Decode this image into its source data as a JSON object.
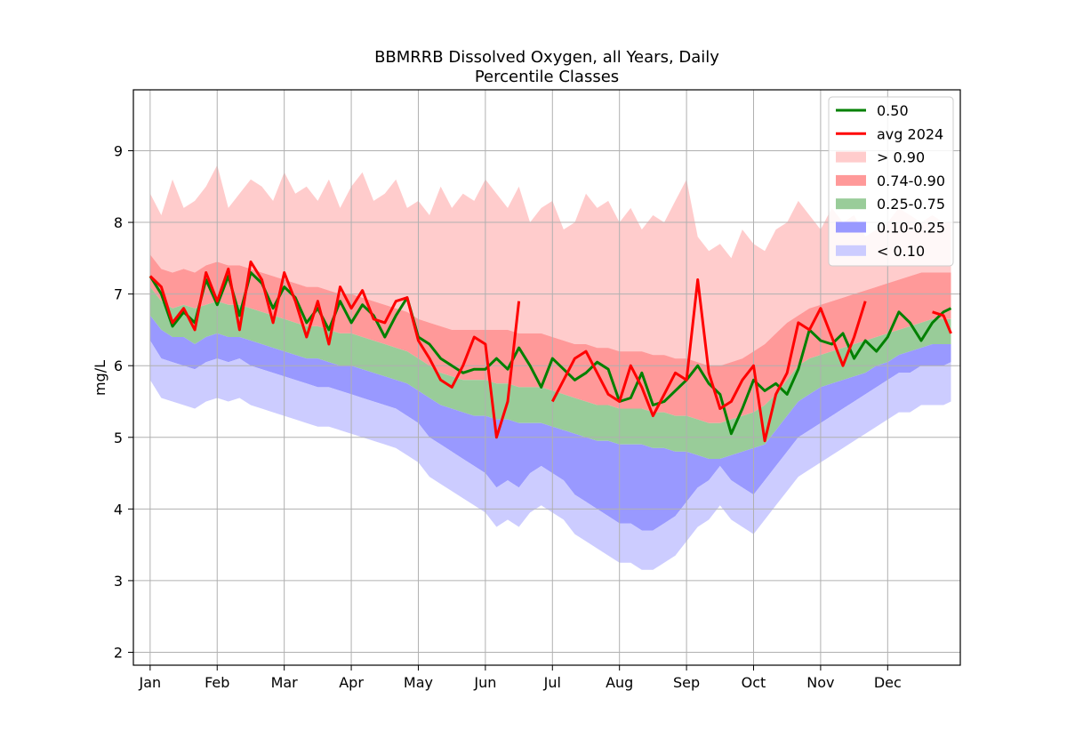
{
  "chart_data": {
    "type": "area",
    "title_line1": "BBMRRB Dissolved Oxygen, all Years, Daily",
    "title_line2": "Percentile Classes",
    "xlabel": "",
    "ylabel": "mg/L",
    "xlim_days": [
      -9,
      435
    ],
    "ylim": [
      1.82,
      9.85
    ],
    "months": [
      {
        "label": "Jan",
        "day": 0
      },
      {
        "label": "Feb",
        "day": 36
      },
      {
        "label": "Mar",
        "day": 72
      },
      {
        "label": "Apr",
        "day": 108
      },
      {
        "label": "May",
        "day": 144
      },
      {
        "label": "Jun",
        "day": 180
      },
      {
        "label": "Jul",
        "day": 216
      },
      {
        "label": "Aug",
        "day": 252
      },
      {
        "label": "Sep",
        "day": 288
      },
      {
        "label": "Oct",
        "day": 324
      },
      {
        "label": "Nov",
        "day": 360
      },
      {
        "label": "Dec",
        "day": 396
      }
    ],
    "y_ticks": [
      2,
      3,
      4,
      5,
      6,
      7,
      8,
      9
    ],
    "grid": true,
    "legend_position": "top-right",
    "legend": [
      {
        "label": "0.50",
        "kind": "line",
        "color": "#008000"
      },
      {
        "label": "avg 2024",
        "kind": "line",
        "color": "#ff0000"
      },
      {
        "label": "> 0.90",
        "kind": "patch",
        "color": "#ffcccc"
      },
      {
        "label": "0.74-0.90",
        "kind": "patch",
        "color": "#ff9999"
      },
      {
        "label": "0.25-0.75",
        "kind": "patch",
        "color": "#99cc99"
      },
      {
        "label": "0.10-0.25",
        "kind": "patch",
        "color": "#9999ff"
      },
      {
        "label": "< 0.10",
        "kind": "patch",
        "color": "#ccccff"
      }
    ],
    "x_days": [
      0,
      6,
      12,
      18,
      24,
      30,
      36,
      42,
      48,
      54,
      60,
      66,
      72,
      78,
      84,
      90,
      96,
      102,
      108,
      114,
      120,
      126,
      132,
      138,
      144,
      150,
      156,
      162,
      168,
      174,
      180,
      186,
      192,
      198,
      204,
      210,
      216,
      222,
      228,
      234,
      240,
      246,
      252,
      258,
      264,
      270,
      276,
      282,
      288,
      294,
      300,
      306,
      312,
      318,
      324,
      330,
      336,
      342,
      348,
      354,
      360,
      366,
      372,
      378,
      384,
      390,
      396,
      402,
      408,
      414,
      420,
      426,
      430
    ],
    "series": [
      {
        "name": "< 0.10",
        "color": "#ccccff",
        "values": [
          6.35,
          6.1,
          6.05,
          6.0,
          5.95,
          6.05,
          6.1,
          6.05,
          6.1,
          6.0,
          5.95,
          5.9,
          5.85,
          5.8,
          5.75,
          5.7,
          5.7,
          5.65,
          5.6,
          5.55,
          5.5,
          5.45,
          5.4,
          5.3,
          5.2,
          5.0,
          4.9,
          4.8,
          4.7,
          4.6,
          4.5,
          4.3,
          4.4,
          4.3,
          4.5,
          4.6,
          4.5,
          4.4,
          4.2,
          4.1,
          4.0,
          3.9,
          3.8,
          3.8,
          3.7,
          3.7,
          3.8,
          3.9,
          4.1,
          4.3,
          4.4,
          4.6,
          4.4,
          4.3,
          4.2,
          4.4,
          4.6,
          4.8,
          5.0,
          5.1,
          5.2,
          5.3,
          5.4,
          5.5,
          5.6,
          5.7,
          5.8,
          5.9,
          5.9,
          6.0,
          6.0,
          6.0,
          6.05
        ]
      },
      {
        "name": "0.10-0.25",
        "color": "#9999ff",
        "values": [
          6.7,
          6.5,
          6.4,
          6.4,
          6.3,
          6.4,
          6.45,
          6.4,
          6.4,
          6.35,
          6.3,
          6.25,
          6.2,
          6.15,
          6.1,
          6.1,
          6.05,
          6.0,
          6.0,
          5.95,
          5.9,
          5.85,
          5.8,
          5.75,
          5.65,
          5.55,
          5.45,
          5.4,
          5.35,
          5.3,
          5.3,
          5.25,
          5.25,
          5.2,
          5.2,
          5.2,
          5.15,
          5.1,
          5.05,
          5.0,
          4.95,
          4.95,
          4.9,
          4.9,
          4.9,
          4.85,
          4.85,
          4.8,
          4.8,
          4.75,
          4.7,
          4.7,
          4.75,
          4.8,
          4.85,
          4.9,
          5.1,
          5.3,
          5.5,
          5.6,
          5.7,
          5.75,
          5.8,
          5.85,
          5.9,
          6.0,
          6.05,
          6.15,
          6.2,
          6.25,
          6.3,
          6.3,
          6.3
        ]
      },
      {
        "name": "0.25-0.75",
        "color": "#99cc99",
        "values": [
          7.1,
          6.9,
          6.8,
          6.85,
          6.8,
          6.85,
          6.9,
          6.85,
          6.85,
          6.8,
          6.75,
          6.7,
          6.65,
          6.6,
          6.55,
          6.55,
          6.5,
          6.45,
          6.45,
          6.4,
          6.35,
          6.3,
          6.25,
          6.2,
          6.1,
          6.0,
          5.9,
          5.85,
          5.8,
          5.8,
          5.8,
          5.75,
          5.75,
          5.7,
          5.7,
          5.7,
          5.65,
          5.6,
          5.55,
          5.5,
          5.45,
          5.45,
          5.4,
          5.4,
          5.4,
          5.35,
          5.35,
          5.3,
          5.3,
          5.25,
          5.2,
          5.2,
          5.25,
          5.3,
          5.35,
          5.45,
          5.6,
          5.8,
          6.0,
          6.1,
          6.15,
          6.2,
          6.25,
          6.3,
          6.35,
          6.4,
          6.45,
          6.5,
          6.55,
          6.6,
          6.65,
          6.65,
          6.65
        ]
      },
      {
        "name": "0.50",
        "color": "#008000",
        "values": [
          7.25,
          7.0,
          6.55,
          6.75,
          6.6,
          7.2,
          6.85,
          7.25,
          6.7,
          7.3,
          7.15,
          6.8,
          7.1,
          6.95,
          6.6,
          6.8,
          6.5,
          6.9,
          6.6,
          6.85,
          6.7,
          6.4,
          6.7,
          6.95,
          6.4,
          6.3,
          6.1,
          6.0,
          5.9,
          5.95,
          5.95,
          6.1,
          5.95,
          6.25,
          6.0,
          5.7,
          6.1,
          5.95,
          5.8,
          5.9,
          6.05,
          5.95,
          5.5,
          5.55,
          5.9,
          5.45,
          5.5,
          5.65,
          5.8,
          6.0,
          5.75,
          5.6,
          5.05,
          5.4,
          5.8,
          5.65,
          5.75,
          5.6,
          5.95,
          6.5,
          6.35,
          6.3,
          6.45,
          6.1,
          6.35,
          6.2,
          6.4,
          6.75,
          6.6,
          6.35,
          6.6,
          6.75,
          6.8
        ]
      },
      {
        "name": "0.74-0.90",
        "color": "#ff9999",
        "values": [
          7.55,
          7.35,
          7.3,
          7.35,
          7.3,
          7.4,
          7.45,
          7.4,
          7.4,
          7.35,
          7.3,
          7.25,
          7.2,
          7.15,
          7.1,
          7.1,
          7.05,
          7.0,
          7.0,
          6.95,
          6.9,
          6.85,
          6.8,
          6.75,
          6.65,
          6.6,
          6.55,
          6.5,
          6.5,
          6.5,
          6.5,
          6.5,
          6.5,
          6.45,
          6.45,
          6.45,
          6.4,
          6.35,
          6.3,
          6.3,
          6.25,
          6.25,
          6.2,
          6.2,
          6.2,
          6.15,
          6.15,
          6.1,
          6.1,
          6.05,
          6.0,
          6.0,
          6.05,
          6.1,
          6.2,
          6.3,
          6.45,
          6.6,
          6.7,
          6.8,
          6.85,
          6.9,
          6.95,
          7.0,
          7.05,
          7.1,
          7.15,
          7.2,
          7.25,
          7.3,
          7.3,
          7.3,
          7.3
        ]
      },
      {
        "name": "> 0.90",
        "color": "#ffcccc",
        "values": [
          8.4,
          8.1,
          8.6,
          8.2,
          8.3,
          8.5,
          8.8,
          8.2,
          8.4,
          8.6,
          8.5,
          8.3,
          8.7,
          8.4,
          8.5,
          8.3,
          8.6,
          8.2,
          8.5,
          8.7,
          8.3,
          8.4,
          8.6,
          8.2,
          8.3,
          8.1,
          8.5,
          8.2,
          8.4,
          8.3,
          8.6,
          8.4,
          8.2,
          8.5,
          8.0,
          8.2,
          8.3,
          7.9,
          8.0,
          8.4,
          8.2,
          8.3,
          8.0,
          8.2,
          7.9,
          8.1,
          8.0,
          8.3,
          8.6,
          7.8,
          7.6,
          7.7,
          7.5,
          7.9,
          7.7,
          7.6,
          7.9,
          8.0,
          8.3,
          8.1,
          7.9,
          8.2,
          8.0,
          8.1,
          7.8,
          7.9,
          8.0,
          8.2,
          8.1,
          8.0,
          8.1,
          8.0,
          8.0
        ]
      },
      {
        "name": "avg 2024",
        "color": "#ff0000",
        "values": [
          7.25,
          7.1,
          6.6,
          6.8,
          6.5,
          7.3,
          6.9,
          7.35,
          6.5,
          7.45,
          7.2,
          6.6,
          7.3,
          6.9,
          6.4,
          6.9,
          6.3,
          7.1,
          6.8,
          7.05,
          6.65,
          6.6,
          6.9,
          6.95,
          6.35,
          6.1,
          5.8,
          5.7,
          6.0,
          6.4,
          6.3,
          5.0,
          5.5,
          6.9,
          null,
          null,
          5.5,
          5.8,
          6.1,
          6.2,
          5.9,
          5.6,
          5.5,
          6.0,
          5.7,
          5.3,
          5.6,
          5.9,
          5.8,
          7.2,
          5.9,
          5.4,
          5.5,
          5.8,
          6.0,
          4.95,
          5.6,
          5.9,
          6.6,
          6.5,
          6.8,
          6.4,
          6.0,
          6.4,
          6.9,
          null,
          null,
          null,
          null,
          null,
          6.75,
          6.7,
          6.45
        ]
      }
    ]
  }
}
